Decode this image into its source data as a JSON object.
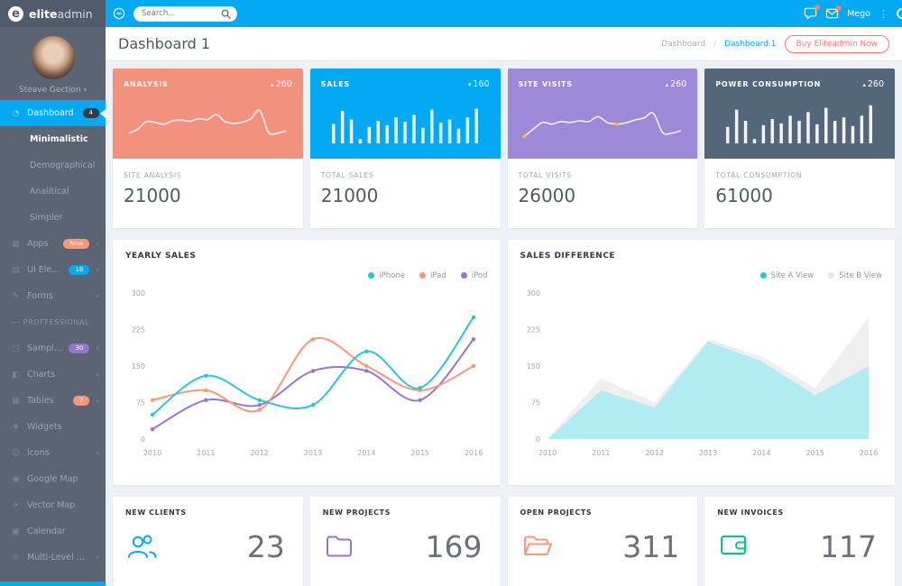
{
  "brand": {
    "logo_bold": "elite",
    "logo_light": "admin"
  },
  "topbar": {
    "search_placeholder": "Search...",
    "user_name": "Mego",
    "badge_color": "#ff7676"
  },
  "sidebar": {
    "user_name": "Steave Gection",
    "items": [
      {
        "type": "item",
        "label": "Dashboard",
        "icon": "gauge-icon",
        "badge": "4",
        "badge_color": "#2f3d4a",
        "active": true
      },
      {
        "type": "sub",
        "label": "Minimalistic",
        "selected": true
      },
      {
        "type": "sub",
        "label": "Demographical"
      },
      {
        "type": "sub",
        "label": "Analitical"
      },
      {
        "type": "sub",
        "label": "Simpler"
      },
      {
        "type": "item",
        "label": "Apps",
        "icon": "apps-icon",
        "badge": "New",
        "badge_color": "#fb9678",
        "chevron": true
      },
      {
        "type": "item",
        "label": "UI Elements",
        "icon": "layers-icon",
        "badge": "18",
        "badge_color": "#03a9f3",
        "chevron": true
      },
      {
        "type": "item",
        "label": "Forms",
        "icon": "form-icon",
        "chevron": true
      },
      {
        "type": "divider",
        "label": "--- PROFFESSIONAL"
      },
      {
        "type": "item",
        "label": "Sample Pages",
        "icon": "pages-icon",
        "badge": "30",
        "badge_color": "#9675ce",
        "chevron": true
      },
      {
        "type": "item",
        "label": "Charts",
        "icon": "chart-icon",
        "chevron": true
      },
      {
        "type": "item",
        "label": "Tables",
        "icon": "table-icon",
        "badge": "7",
        "badge_color": "#fb9678",
        "chevron": true
      },
      {
        "type": "item",
        "label": "Widgets",
        "icon": "widgets-icon"
      },
      {
        "type": "item",
        "label": "Icons",
        "icon": "smiley-icon",
        "chevron": true
      },
      {
        "type": "item",
        "label": "Google Map",
        "icon": "map-marker-icon"
      },
      {
        "type": "item",
        "label": "Vector Map",
        "icon": "globe-icon"
      },
      {
        "type": "item",
        "label": "Calendar",
        "icon": "calendar-icon"
      },
      {
        "type": "item",
        "label": "Multi-Level Dropdown",
        "icon": "list-icon",
        "chevron": true
      }
    ]
  },
  "page_header": {
    "title": "Dashboard 1",
    "breadcrumb_parent": "Dashboard",
    "breadcrumb_separator": "/",
    "breadcrumb_current": "Dashboard 1",
    "buy_button": "Buy Eliteadmin Now"
  },
  "stat_cards": [
    {
      "title": "ANALYSIS",
      "trend": "▴",
      "value": "260",
      "color": "#f2917e",
      "spark": "line",
      "spark_values": [
        20,
        30,
        48,
        46,
        42,
        50,
        52,
        49,
        55,
        53,
        65,
        48,
        44,
        47,
        55,
        75,
        22,
        20,
        26
      ],
      "footer_label": "SITE ANALYSIS",
      "footer_value": "21000"
    },
    {
      "title": "SALES",
      "trend": "▾",
      "value": "160",
      "color": "#03a9f3",
      "spark": "bars",
      "spark_values": [
        45,
        75,
        55,
        10,
        38,
        52,
        42,
        60,
        50,
        66,
        36,
        78,
        48,
        55,
        34,
        60,
        80
      ],
      "footer_label": "TOTAL SALES",
      "footer_value": "21000"
    },
    {
      "title": "SITE VISITS",
      "trend": "▴",
      "value": "260",
      "color": "#9e89d8",
      "spark": "line",
      "spark_values": [
        12,
        30,
        46,
        42,
        48,
        46,
        50,
        48,
        60,
        46,
        42,
        45,
        52,
        57,
        68,
        22,
        20,
        26
      ],
      "spark_dots": [
        0,
        10
      ],
      "footer_label": "TOTAL VISITS",
      "footer_value": "26000"
    },
    {
      "title": "POWER CONSUMPTION",
      "trend": "▴",
      "value": "260",
      "color": "#54667a",
      "spark": "bars",
      "spark_values": [
        38,
        78,
        52,
        10,
        42,
        56,
        46,
        64,
        52,
        72,
        44,
        82,
        52,
        60,
        40,
        64,
        88
      ],
      "footer_label": "TOTAL CONSUMPTION",
      "footer_value": "61000"
    }
  ],
  "chart_data": [
    {
      "type": "line",
      "title": "YEARLY SALES",
      "categories": [
        "2010",
        "2011",
        "2012",
        "2013",
        "2014",
        "2015",
        "2016"
      ],
      "series": [
        {
          "name": "iPhone",
          "color": "#26c6da",
          "values": [
            50,
            130,
            80,
            70,
            180,
            105,
            250
          ]
        },
        {
          "name": "iPad",
          "color": "#fb9678",
          "values": [
            80,
            100,
            60,
            205,
            150,
            100,
            150
          ]
        },
        {
          "name": "iPod",
          "color": "#9675ce",
          "values": [
            20,
            80,
            70,
            140,
            140,
            80,
            205
          ]
        }
      ],
      "ylim": [
        0,
        300
      ],
      "yticks": [
        0,
        75,
        150,
        225,
        300
      ],
      "xlabel": "",
      "ylabel": "",
      "grid": false,
      "legend_position": "top-right"
    },
    {
      "type": "area",
      "title": "SALES DIFFERENCE",
      "categories": [
        "2010",
        "2011",
        "2012",
        "2013",
        "2014",
        "2015",
        "2016"
      ],
      "series": [
        {
          "name": "Site A View",
          "color": "#26c6da",
          "fill": "#b0ecf1",
          "values": [
            0,
            100,
            65,
            200,
            160,
            90,
            150
          ]
        },
        {
          "name": "Site B View",
          "color": "#e4e4e4",
          "fill": "#efefef",
          "values": [
            0,
            125,
            75,
            205,
            170,
            105,
            250
          ]
        }
      ],
      "ylim": [
        0,
        300
      ],
      "yticks": [
        0,
        75,
        150,
        225,
        300
      ],
      "xlabel": "",
      "ylabel": "",
      "grid": false,
      "legend_position": "top-right"
    }
  ],
  "bottom_cards": [
    {
      "label": "NEW CLIENTS",
      "value": "23",
      "icon": "users-icon",
      "color": "#03a9f3"
    },
    {
      "label": "NEW PROJECTS",
      "value": "169",
      "icon": "folder-icon",
      "color": "#9675ce"
    },
    {
      "label": "OPEN PROJECTS",
      "value": "311",
      "icon": "folder-open-icon",
      "color": "#fb9678"
    },
    {
      "label": "NEW INVOICES",
      "value": "117",
      "icon": "wallet-icon",
      "color": "#00c292"
    }
  ],
  "icon_glyphs": {
    "gauge-icon": "◔",
    "apps-icon": "▦",
    "layers-icon": "▤",
    "form-icon": "✎",
    "pages-icon": "▢",
    "chart-icon": "◧",
    "table-icon": "▦",
    "widgets-icon": "❖",
    "smiley-icon": "☺",
    "map-marker-icon": "◉",
    "globe-icon": "✈",
    "calendar-icon": "▣",
    "list-icon": "≡",
    "chevron-collapsed": "‹",
    "caret-down": "▾",
    "more-vertical": "⋮"
  }
}
